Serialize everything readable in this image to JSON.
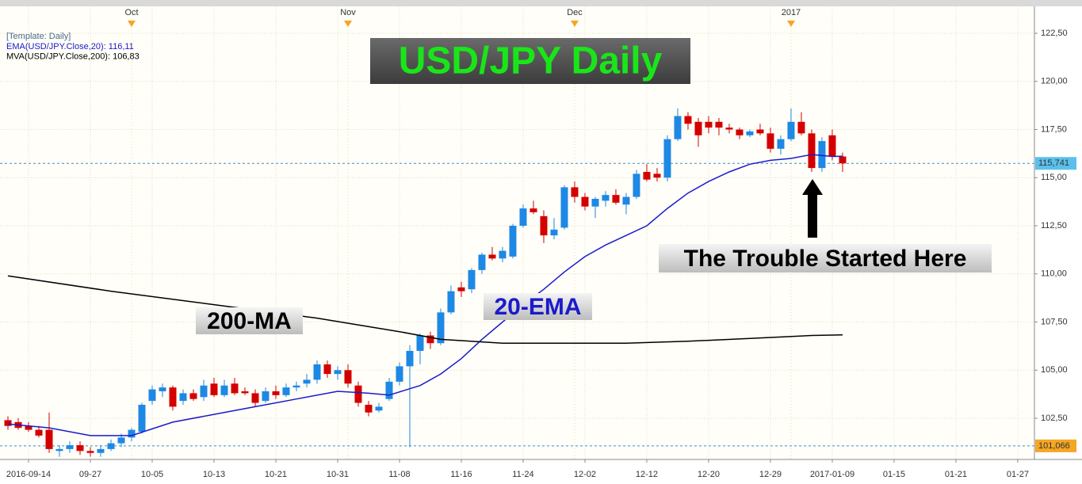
{
  "chart_data": {
    "type": "candlestick",
    "title": "USD/JPY Daily",
    "template": "[Template: Daily]",
    "up_color": "#1e88e5",
    "down_color": "#d40000",
    "grid": true,
    "ylim": [
      100.36,
      123.9
    ],
    "yticks": [
      {
        "value": 102.5,
        "label": "102,50"
      },
      {
        "value": 105,
        "label": "105,00"
      },
      {
        "value": 107.5,
        "label": "107,50"
      },
      {
        "value": 110,
        "label": "110,00"
      },
      {
        "value": 112.5,
        "label": "112,50"
      },
      {
        "value": 115,
        "label": "115,00"
      },
      {
        "value": 117.5,
        "label": "117,50"
      },
      {
        "value": 120,
        "label": "120,00"
      },
      {
        "value": 122.5,
        "label": "122,50"
      }
    ],
    "xlim": [
      -0.77,
      99.62
    ],
    "xticks": [
      {
        "value": 2,
        "label": "2016-09-14"
      },
      {
        "value": 8,
        "label": "09-27"
      },
      {
        "value": 14,
        "label": "10-05"
      },
      {
        "value": 20,
        "label": "10-13"
      },
      {
        "value": 26,
        "label": "10-21"
      },
      {
        "value": 32,
        "label": "10-31"
      },
      {
        "value": 38,
        "label": "11-08"
      },
      {
        "value": 44,
        "label": "11-16"
      },
      {
        "value": 50,
        "label": "11-24"
      },
      {
        "value": 56,
        "label": "12-02"
      },
      {
        "value": 62,
        "label": "12-12"
      },
      {
        "value": 68,
        "label": "12-20"
      },
      {
        "value": 74,
        "label": "12-29"
      },
      {
        "value": 80,
        "label": "2017-01-09"
      },
      {
        "value": 86,
        "label": "01-15"
      },
      {
        "value": 92,
        "label": "01-21"
      },
      {
        "value": 98,
        "label": "01-27"
      }
    ],
    "top_xticks": [
      {
        "value": 12,
        "label": "Oct"
      },
      {
        "value": 33,
        "label": "Nov"
      },
      {
        "value": 55,
        "label": "Dec"
      },
      {
        "value": 76,
        "label": "2017"
      }
    ],
    "price_tags": [
      {
        "value": 115.741,
        "label": "115,741",
        "color": "#5bc0eb"
      },
      {
        "value": 101.066,
        "label": "101,066",
        "color": "#f5a623"
      }
    ],
    "candles": [
      [
        102.4,
        102.6,
        101.9,
        102.1
      ],
      [
        102.3,
        102.5,
        101.9,
        102.0
      ],
      [
        102.1,
        102.3,
        101.8,
        101.9
      ],
      [
        101.9,
        102.1,
        101.5,
        101.6
      ],
      [
        101.9,
        102.8,
        100.7,
        100.9
      ],
      [
        100.8,
        101.1,
        100.5,
        100.9
      ],
      [
        100.9,
        101.3,
        100.7,
        101.1
      ],
      [
        101.1,
        101.3,
        100.6,
        100.8
      ],
      [
        100.8,
        101.0,
        100.5,
        100.7
      ],
      [
        100.7,
        101.1,
        100.5,
        100.9
      ],
      [
        100.9,
        101.4,
        100.8,
        101.2
      ],
      [
        101.2,
        101.7,
        101.0,
        101.5
      ],
      [
        101.5,
        102.0,
        101.3,
        101.9
      ],
      [
        101.8,
        103.3,
        101.7,
        103.2
      ],
      [
        103.4,
        104.2,
        103.2,
        104.0
      ],
      [
        103.9,
        104.3,
        103.6,
        104.1
      ],
      [
        104.1,
        104.2,
        102.9,
        103.1
      ],
      [
        103.4,
        104.0,
        103.2,
        103.8
      ],
      [
        103.8,
        104.0,
        103.4,
        103.5
      ],
      [
        103.6,
        104.5,
        103.4,
        104.2
      ],
      [
        104.3,
        104.6,
        103.6,
        103.7
      ],
      [
        103.7,
        104.5,
        103.6,
        104.2
      ],
      [
        104.3,
        104.6,
        103.7,
        103.8
      ],
      [
        103.9,
        104.1,
        103.7,
        103.8
      ],
      [
        103.8,
        104.0,
        103.1,
        103.3
      ],
      [
        103.4,
        104.1,
        103.3,
        103.9
      ],
      [
        103.9,
        104.2,
        103.5,
        103.7
      ],
      [
        103.7,
        104.3,
        103.6,
        104.1
      ],
      [
        104.1,
        104.4,
        103.9,
        104.2
      ],
      [
        104.3,
        104.8,
        104.1,
        104.5
      ],
      [
        104.5,
        105.5,
        104.3,
        105.3
      ],
      [
        105.3,
        105.5,
        104.6,
        104.8
      ],
      [
        104.8,
        105.2,
        104.5,
        105.0
      ],
      [
        105.0,
        105.3,
        104.1,
        104.3
      ],
      [
        104.2,
        104.4,
        103.1,
        103.3
      ],
      [
        103.2,
        103.4,
        102.6,
        102.8
      ],
      [
        102.9,
        103.3,
        102.8,
        103.1
      ],
      [
        103.5,
        104.6,
        103.4,
        104.4
      ],
      [
        104.4,
        105.4,
        104.2,
        105.2
      ],
      [
        105.2,
        106.3,
        101.0,
        106.0
      ],
      [
        106.0,
        106.9,
        105.3,
        106.8
      ],
      [
        106.8,
        107.0,
        106.1,
        106.4
      ],
      [
        106.4,
        108.2,
        106.3,
        108.0
      ],
      [
        108.0,
        109.4,
        107.9,
        109.1
      ],
      [
        109.3,
        109.6,
        108.8,
        109.1
      ],
      [
        109.2,
        110.3,
        109.0,
        110.2
      ],
      [
        110.2,
        111.1,
        110.0,
        111.0
      ],
      [
        111.0,
        111.4,
        110.7,
        110.8
      ],
      [
        110.8,
        111.4,
        110.6,
        111.2
      ],
      [
        110.9,
        112.6,
        110.8,
        112.5
      ],
      [
        112.5,
        113.6,
        112.4,
        113.4
      ],
      [
        113.4,
        113.8,
        113.1,
        113.2
      ],
      [
        113.0,
        113.3,
        111.6,
        112.0
      ],
      [
        112.0,
        112.9,
        111.8,
        112.3
      ],
      [
        112.4,
        114.6,
        112.3,
        114.5
      ],
      [
        114.5,
        114.8,
        113.7,
        114.0
      ],
      [
        114.0,
        114.2,
        113.3,
        113.5
      ],
      [
        113.5,
        114.0,
        112.9,
        113.9
      ],
      [
        113.8,
        114.3,
        113.5,
        114.1
      ],
      [
        114.1,
        114.4,
        113.6,
        113.7
      ],
      [
        113.6,
        114.2,
        113.1,
        114.0
      ],
      [
        114.0,
        115.4,
        113.9,
        115.2
      ],
      [
        115.3,
        115.7,
        114.8,
        114.9
      ],
      [
        115.2,
        115.5,
        114.8,
        115.0
      ],
      [
        115.0,
        117.2,
        114.8,
        117.0
      ],
      [
        117.0,
        118.6,
        116.9,
        118.2
      ],
      [
        118.2,
        118.4,
        117.5,
        117.8
      ],
      [
        117.9,
        118.1,
        116.6,
        117.2
      ],
      [
        117.9,
        118.2,
        117.3,
        117.6
      ],
      [
        117.9,
        118.1,
        117.2,
        117.6
      ],
      [
        117.6,
        117.8,
        117.3,
        117.5
      ],
      [
        117.5,
        117.6,
        117.0,
        117.2
      ],
      [
        117.2,
        117.5,
        117.1,
        117.4
      ],
      [
        117.5,
        117.8,
        117.2,
        117.3
      ],
      [
        117.3,
        117.6,
        116.3,
        116.5
      ],
      [
        116.5,
        117.2,
        116.2,
        117.0
      ],
      [
        117.0,
        118.6,
        116.9,
        117.9
      ],
      [
        117.9,
        118.4,
        117.2,
        117.3
      ],
      [
        117.3,
        117.5,
        115.3,
        115.5
      ],
      [
        115.5,
        117.1,
        115.3,
        116.9
      ],
      [
        117.2,
        117.5,
        115.9,
        116.1
      ],
      [
        116.1,
        116.3,
        115.3,
        115.741
      ]
    ],
    "lines": [
      {
        "name": "EMA(USD/JPY.Close,20): 116,11",
        "color": "#1a1acc",
        "x": [
          0,
          4,
          8,
          12,
          16,
          20,
          24,
          28,
          32,
          35,
          37,
          40,
          42,
          44,
          46,
          48,
          50,
          52,
          54,
          56,
          58,
          60,
          62,
          64,
          66,
          68,
          70,
          72,
          74,
          76,
          78,
          80,
          81
        ],
        "values": [
          102.2,
          102.0,
          101.6,
          101.6,
          102.3,
          102.7,
          103.1,
          103.5,
          103.9,
          103.8,
          103.7,
          104.2,
          104.8,
          105.6,
          106.6,
          107.5,
          108.4,
          109.2,
          110.1,
          110.9,
          111.5,
          112.0,
          112.5,
          113.4,
          114.2,
          114.8,
          115.3,
          115.7,
          115.9,
          116.0,
          116.2,
          116.1,
          116.11
        ]
      },
      {
        "name": "MVA(USD/JPY.Close,200): 106,83",
        "color": "#000000",
        "x": [
          0,
          10,
          20,
          30,
          38,
          42,
          48,
          60,
          66,
          72,
          78,
          81
        ],
        "values": [
          109.9,
          109.1,
          108.4,
          107.7,
          107.0,
          106.6,
          106.4,
          106.4,
          106.5,
          106.65,
          106.8,
          106.83
        ]
      }
    ],
    "annotations": [
      "200-MA",
      "20-EMA",
      "The Trouble Started Here"
    ]
  }
}
